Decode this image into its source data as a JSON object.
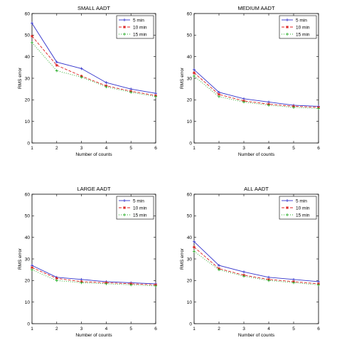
{
  "chart_data": [
    {
      "type": "line",
      "title": "SMALL AADT",
      "xlabel": "Number of counts",
      "ylabel": "RMS error",
      "xlim": [
        1,
        6
      ],
      "ylim": [
        0,
        60
      ],
      "x": [
        1,
        2,
        3,
        4,
        5,
        6
      ],
      "xticks": [
        "1",
        "2",
        "3",
        "4",
        "5",
        "6"
      ],
      "yticks": [
        "0",
        "10",
        "20",
        "30",
        "40",
        "50",
        "60"
      ],
      "grid": false,
      "legend_position": "top-right",
      "series": [
        {
          "name": "5 min",
          "values": [
            55.5,
            37.5,
            34.5,
            28.0,
            25.0,
            23.0
          ]
        },
        {
          "name": "10 min",
          "values": [
            49.5,
            36.0,
            31.0,
            26.5,
            24.0,
            22.0
          ]
        },
        {
          "name": "15 min",
          "values": [
            46.5,
            33.5,
            30.5,
            26.0,
            23.5,
            21.5
          ]
        }
      ]
    },
    {
      "type": "line",
      "title": "MEDIUM AADT",
      "xlabel": "Number of counts",
      "ylabel": "RMS error",
      "xlim": [
        1,
        6
      ],
      "ylim": [
        0,
        60
      ],
      "x": [
        1,
        2,
        3,
        4,
        5,
        6
      ],
      "xticks": [
        "1",
        "2",
        "3",
        "4",
        "5",
        "6"
      ],
      "yticks": [
        "0",
        "10",
        "20",
        "30",
        "40",
        "50",
        "60"
      ],
      "grid": false,
      "legend_position": "top-right",
      "series": [
        {
          "name": "5 min",
          "values": [
            34.0,
            23.5,
            20.5,
            19.0,
            17.5,
            17.0
          ]
        },
        {
          "name": "10 min",
          "values": [
            32.5,
            22.5,
            19.5,
            18.0,
            17.0,
            16.5
          ]
        },
        {
          "name": "15 min",
          "values": [
            31.0,
            21.5,
            19.0,
            17.5,
            16.5,
            16.0
          ]
        }
      ]
    },
    {
      "type": "line",
      "title": "LARGE AADT",
      "xlabel": "Number of counts",
      "ylabel": "RMS error",
      "xlim": [
        1,
        6
      ],
      "ylim": [
        0,
        60
      ],
      "x": [
        1,
        2,
        3,
        4,
        5,
        6
      ],
      "xticks": [
        "1",
        "2",
        "3",
        "4",
        "5",
        "6"
      ],
      "yticks": [
        "0",
        "10",
        "20",
        "30",
        "40",
        "50",
        "60"
      ],
      "grid": false,
      "legend_position": "top-right",
      "series": [
        {
          "name": "5 min",
          "values": [
            27.0,
            21.5,
            20.5,
            19.5,
            19.0,
            18.5
          ]
        },
        {
          "name": "10 min",
          "values": [
            26.0,
            21.0,
            19.5,
            19.0,
            18.5,
            18.0
          ]
        },
        {
          "name": "15 min",
          "values": [
            25.0,
            20.0,
            19.0,
            18.5,
            18.0,
            17.5
          ]
        }
      ]
    },
    {
      "type": "line",
      "title": "ALL AADT",
      "xlabel": "Number of counts",
      "ylabel": "RMS error",
      "xlim": [
        1,
        6
      ],
      "ylim": [
        0,
        60
      ],
      "x": [
        1,
        2,
        3,
        4,
        5,
        6
      ],
      "xticks": [
        "1",
        "2",
        "3",
        "4",
        "5",
        "6"
      ],
      "yticks": [
        "0",
        "10",
        "20",
        "30",
        "40",
        "50",
        "60"
      ],
      "grid": false,
      "legend_position": "top-right",
      "series": [
        {
          "name": "5 min",
          "values": [
            38.0,
            27.0,
            24.0,
            21.5,
            20.5,
            19.5
          ]
        },
        {
          "name": "10 min",
          "values": [
            35.5,
            25.5,
            22.5,
            20.5,
            19.5,
            18.5
          ]
        },
        {
          "name": "15 min",
          "values": [
            33.5,
            25.0,
            22.0,
            20.0,
            19.0,
            18.0
          ]
        }
      ]
    }
  ],
  "series_styles": [
    {
      "color": "#3333cc",
      "dash": "none",
      "marker": "plus"
    },
    {
      "color": "#dd2222",
      "dash": "4,2",
      "marker": "star"
    },
    {
      "color": "#22aa22",
      "dash": "1,2",
      "marker": "plus"
    }
  ]
}
